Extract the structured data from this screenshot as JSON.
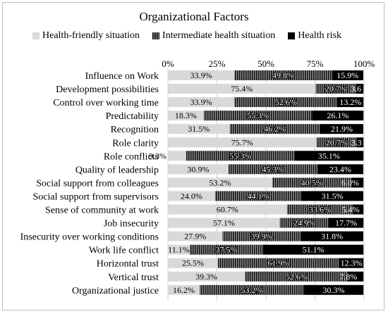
{
  "chart_data": {
    "type": "bar",
    "stacked": "percent",
    "orientation": "horizontal",
    "title": "Organizational Factors",
    "x_ticks": [
      "0%",
      "25%",
      "50%",
      "75%",
      "100%"
    ],
    "xlim": [
      0,
      100
    ],
    "grid": true,
    "legend_position": "top",
    "categories": [
      "Influence on Work",
      "Development possibilities",
      "Control over working time",
      "Predictability",
      "Recognition",
      "Role clarity",
      "Role conflicts",
      "Quality of leadership",
      "Social support from colleagues",
      "Social support from supervisors",
      "Sense of community at work",
      "Job insecurity",
      "Insecurity over working conditions",
      "Work life conflict",
      "Horizontal trust",
      "Vertical trust",
      "Organizational justice"
    ],
    "series": [
      {
        "name": "Health-friendly situation",
        "color": "#d9d9d9",
        "values": [
          33.9,
          75.4,
          33.9,
          18.3,
          31.5,
          75.7,
          9.3,
          30.9,
          53.2,
          24.0,
          60.7,
          57.1,
          27.9,
          11.1,
          25.5,
          39.3,
          16.2
        ],
        "labels": [
          "33.9%",
          "75.4%",
          "33.9%",
          "18.3%",
          "31.5%",
          "75.7%",
          "9.3%",
          "30.9%",
          "53.2%",
          "24.0%",
          "60.7%",
          "57.1%",
          "27.9%",
          "11.1%",
          "25.5%",
          "39.3%",
          "16.2%"
        ]
      },
      {
        "name": "Intermediate health situation",
        "color": "#3a3a3a",
        "pattern": "vertical-stripes",
        "values": [
          49.8,
          20.7,
          52.6,
          55.3,
          46.2,
          20.7,
          55.3,
          45.3,
          40.5,
          44.1,
          33.6,
          24.9,
          39.9,
          37.5,
          61.9,
          52.6,
          53.2
        ],
        "labels": [
          "49.8%",
          "20.7%",
          "52.6%",
          "55.3%",
          "46.2%",
          "20.7%",
          "55.3%",
          "45.3%",
          "40.5%",
          "44.1%",
          "33.6%",
          "24.9%",
          "39.9%",
          "37.5%",
          "61.9%",
          "52.6%",
          "53.2%"
        ]
      },
      {
        "name": "Health risk",
        "color": "#000000",
        "values": [
          15.9,
          3.6,
          13.2,
          26.1,
          21.9,
          3.3,
          35.1,
          23.4,
          6.0,
          31.5,
          5.4,
          17.7,
          31.8,
          51.1,
          12.3,
          7.8,
          30.3
        ],
        "labels": [
          "15.9%",
          "3.6",
          "13.2%",
          "26.1%",
          "21.9%",
          "3.3",
          "35.1%",
          "23.4%",
          "6.0%",
          "31.5%",
          "5.4%",
          "17.7%",
          "31.8%",
          "51.1%",
          "12.3%",
          "7.8%",
          "30.3%"
        ]
      }
    ]
  }
}
